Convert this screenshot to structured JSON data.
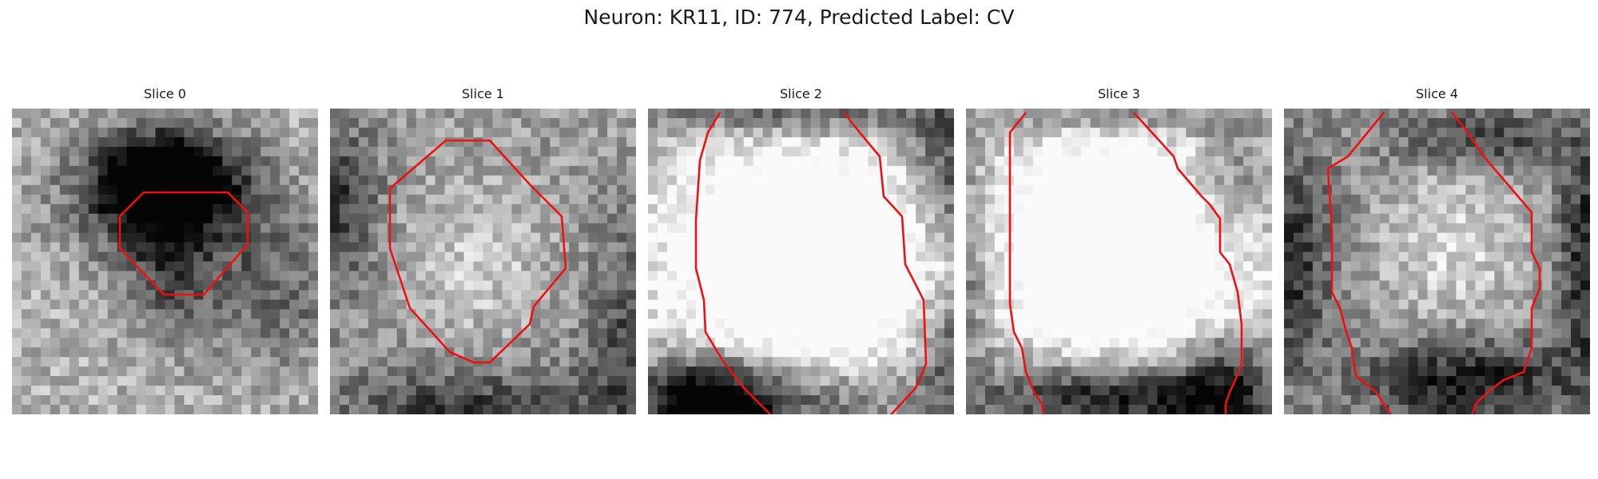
{
  "figure": {
    "title": "Neuron: KR11, ID: 774, Predicted Label: CV",
    "colormap": "grayscale",
    "contour_color": "#ee1111",
    "slices": [
      {
        "title": "Slice 0",
        "seed": 11,
        "dark": [
          [
            0.5,
            0.22,
            0.22,
            0.14,
            0.75
          ],
          [
            0.5,
            0.3,
            0.3,
            0.2,
            0.55
          ],
          [
            0.5,
            0.55,
            0.15,
            0.22,
            0.3
          ],
          [
            0.85,
            0.6,
            0.25,
            0.25,
            0.3
          ]
        ]
      },
      {
        "title": "Slice 1",
        "seed": 23,
        "dark": [
          [
            0.48,
            0.5,
            0.34,
            0.38,
            -0.85
          ],
          [
            0.48,
            0.5,
            0.42,
            0.46,
            0.75
          ],
          [
            0.0,
            0.3,
            0.15,
            0.3,
            0.4
          ],
          [
            1.0,
            0.8,
            0.15,
            0.4,
            0.35
          ],
          [
            0.45,
            1.0,
            0.5,
            0.15,
            0.4
          ]
        ]
      },
      {
        "title": "Slice 2",
        "seed": 37,
        "dark": [
          [
            0.5,
            0.5,
            0.42,
            0.38,
            -0.85
          ],
          [
            0.2,
            1.0,
            0.2,
            0.18,
            0.75
          ],
          [
            0.4,
            0.95,
            0.5,
            0.14,
            0.45
          ],
          [
            0.5,
            0.0,
            0.5,
            0.1,
            0.45
          ],
          [
            1.0,
            0.2,
            0.15,
            0.25,
            0.45
          ],
          [
            1.0,
            0.8,
            0.12,
            0.2,
            0.4
          ]
        ]
      },
      {
        "title": "Slice 3",
        "seed": 51,
        "dark": [
          [
            0.5,
            0.45,
            0.4,
            0.38,
            -0.85
          ],
          [
            0.5,
            0.95,
            0.45,
            0.14,
            0.7
          ],
          [
            0.85,
            0.9,
            0.15,
            0.2,
            0.4
          ],
          [
            0.0,
            0.5,
            0.1,
            0.35,
            0.35
          ],
          [
            0.85,
            0.25,
            0.15,
            0.2,
            0.35
          ],
          [
            0.5,
            0.02,
            0.4,
            0.08,
            0.35
          ]
        ]
      },
      {
        "title": "Slice 4",
        "seed": 67,
        "dark": [
          [
            0.55,
            0.45,
            0.34,
            0.36,
            -0.85
          ],
          [
            0.55,
            0.45,
            0.44,
            0.46,
            0.7
          ],
          [
            0.0,
            0.5,
            0.15,
            0.4,
            0.45
          ],
          [
            1.0,
            0.5,
            0.1,
            0.4,
            0.5
          ],
          [
            0.6,
            0.9,
            0.35,
            0.15,
            0.5
          ],
          [
            0.65,
            0.1,
            0.3,
            0.1,
            0.35
          ]
        ]
      }
    ]
  }
}
